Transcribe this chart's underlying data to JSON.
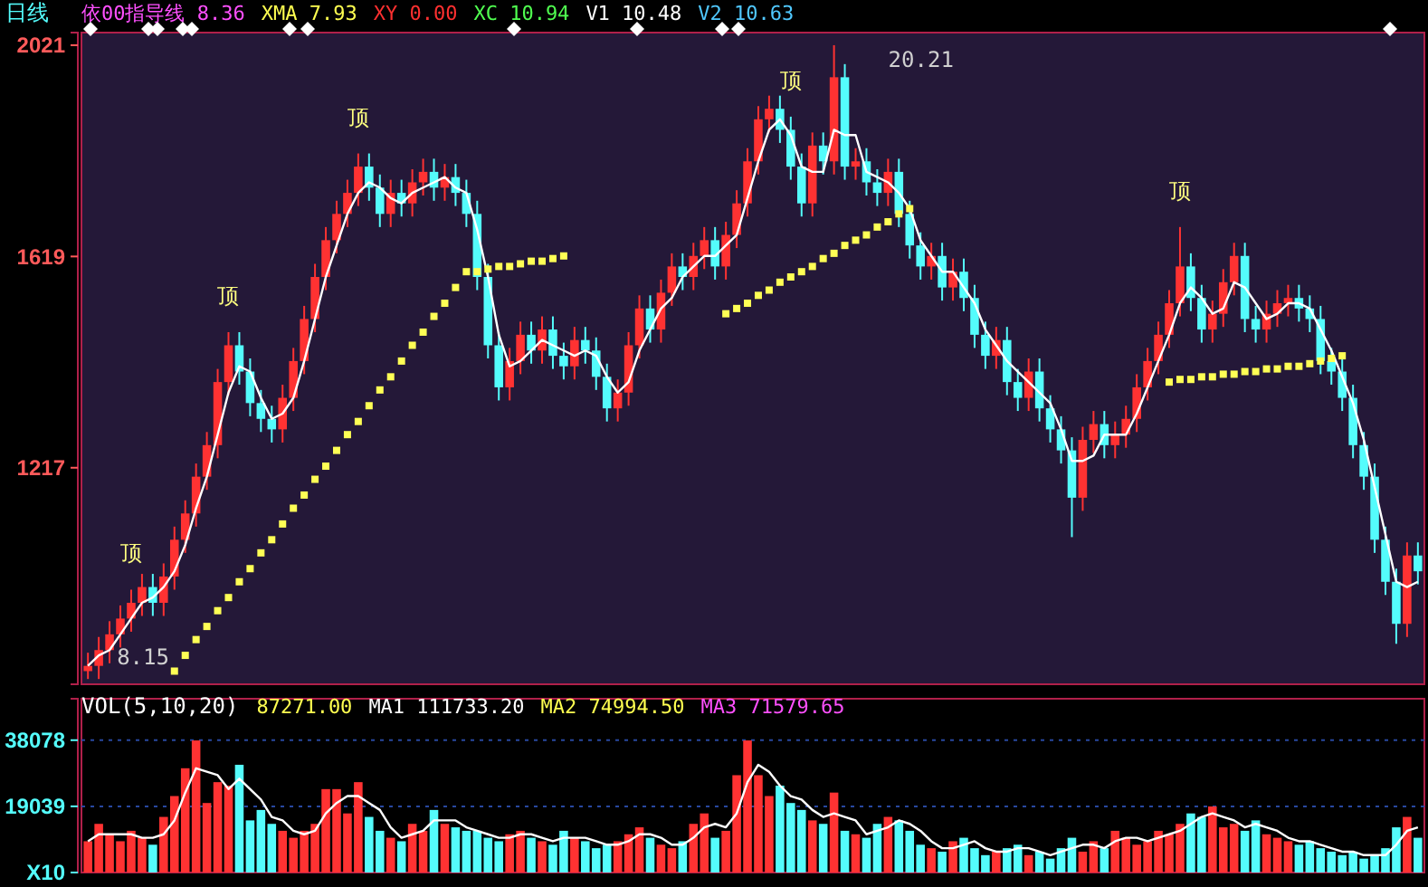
{
  "chart_data": [
    {
      "type": "candlestick",
      "title": "日线",
      "annotations": [
        "依00指导线 8.36",
        "XMA 7.93",
        "XY 0.00",
        "XC 10.94",
        "V1 10.48",
        "V2 10.63"
      ],
      "categories": [
        null,
        null,
        null,
        null,
        null,
        null,
        null,
        null,
        null,
        null,
        null,
        null,
        null,
        null,
        null,
        null,
        null,
        null,
        null,
        null,
        null,
        null,
        null,
        null,
        null,
        null,
        null,
        null,
        null,
        null,
        null,
        null,
        null,
        null,
        null,
        null,
        null,
        null,
        null,
        null,
        null,
        null,
        null,
        null,
        null,
        null,
        null,
        null,
        null,
        null,
        null,
        null,
        null,
        null,
        null,
        null,
        null,
        null,
        null,
        null,
        null,
        null,
        null,
        null,
        null,
        null,
        null,
        null,
        null,
        null,
        null,
        null,
        null,
        null,
        null,
        null,
        null,
        null,
        null,
        null,
        null,
        null,
        null,
        null,
        null,
        null,
        null,
        null,
        null,
        null,
        null,
        null,
        null,
        null,
        null,
        null,
        null,
        null,
        null,
        null,
        null,
        null,
        null,
        null,
        null,
        null,
        null,
        null,
        null,
        null,
        null,
        null,
        null,
        null,
        null,
        null,
        null,
        null,
        null,
        null,
        null,
        null,
        null,
        null
      ],
      "ohlc": [
        [
          830,
          865,
          815,
          840
        ],
        [
          840,
          895,
          815,
          870
        ],
        [
          870,
          925,
          845,
          900
        ],
        [
          900,
          955,
          875,
          930
        ],
        [
          930,
          985,
          905,
          960
        ],
        [
          960,
          1015,
          935,
          990
        ],
        [
          990,
          1015,
          935,
          960
        ],
        [
          960,
          1035,
          935,
          1010
        ],
        [
          1010,
          1105,
          985,
          1080
        ],
        [
          1080,
          1155,
          1055,
          1130
        ],
        [
          1130,
          1225,
          1105,
          1200
        ],
        [
          1200,
          1285,
          1175,
          1260
        ],
        [
          1260,
          1405,
          1235,
          1380
        ],
        [
          1380,
          1475,
          1355,
          1450
        ],
        [
          1450,
          1475,
          1375,
          1400
        ],
        [
          1400,
          1425,
          1315,
          1340
        ],
        [
          1340,
          1365,
          1285,
          1310
        ],
        [
          1310,
          1335,
          1265,
          1290
        ],
        [
          1290,
          1375,
          1265,
          1350
        ],
        [
          1350,
          1445,
          1325,
          1420
        ],
        [
          1420,
          1525,
          1395,
          1500
        ],
        [
          1500,
          1605,
          1475,
          1580
        ],
        [
          1580,
          1675,
          1555,
          1650
        ],
        [
          1650,
          1725,
          1625,
          1700
        ],
        [
          1700,
          1765,
          1675,
          1740
        ],
        [
          1740,
          1815,
          1715,
          1790
        ],
        [
          1790,
          1815,
          1725,
          1750
        ],
        [
          1750,
          1775,
          1675,
          1700
        ],
        [
          1700,
          1765,
          1675,
          1740
        ],
        [
          1740,
          1765,
          1695,
          1720
        ],
        [
          1720,
          1785,
          1695,
          1760
        ],
        [
          1760,
          1805,
          1735,
          1780
        ],
        [
          1780,
          1805,
          1725,
          1750
        ],
        [
          1750,
          1795,
          1725,
          1770
        ],
        [
          1770,
          1795,
          1715,
          1740
        ],
        [
          1740,
          1765,
          1675,
          1700
        ],
        [
          1700,
          1725,
          1555,
          1580
        ],
        [
          1580,
          1605,
          1425,
          1450
        ],
        [
          1450,
          1475,
          1345,
          1370
        ],
        [
          1370,
          1445,
          1345,
          1420
        ],
        [
          1420,
          1495,
          1395,
          1470
        ],
        [
          1470,
          1495,
          1415,
          1440
        ],
        [
          1440,
          1505,
          1415,
          1480
        ],
        [
          1480,
          1505,
          1405,
          1430
        ],
        [
          1430,
          1455,
          1385,
          1410
        ],
        [
          1410,
          1485,
          1385,
          1460
        ],
        [
          1460,
          1485,
          1415,
          1440
        ],
        [
          1440,
          1465,
          1365,
          1390
        ],
        [
          1390,
          1415,
          1305,
          1330
        ],
        [
          1330,
          1385,
          1305,
          1360
        ],
        [
          1360,
          1475,
          1335,
          1450
        ],
        [
          1450,
          1545,
          1425,
          1520
        ],
        [
          1520,
          1545,
          1455,
          1480
        ],
        [
          1480,
          1575,
          1455,
          1550
        ],
        [
          1550,
          1625,
          1525,
          1600
        ],
        [
          1600,
          1625,
          1555,
          1580
        ],
        [
          1580,
          1645,
          1555,
          1620
        ],
        [
          1620,
          1675,
          1595,
          1650
        ],
        [
          1650,
          1675,
          1575,
          1600
        ],
        [
          1600,
          1685,
          1575,
          1660
        ],
        [
          1660,
          1745,
          1635,
          1720
        ],
        [
          1720,
          1825,
          1695,
          1800
        ],
        [
          1800,
          1905,
          1775,
          1880
        ],
        [
          1880,
          1925,
          1855,
          1900
        ],
        [
          1900,
          1925,
          1835,
          1860
        ],
        [
          1860,
          1885,
          1765,
          1790
        ],
        [
          1790,
          1815,
          1695,
          1720
        ],
        [
          1720,
          1855,
          1695,
          1830
        ],
        [
          1830,
          1855,
          1775,
          1800
        ],
        [
          1800,
          2021,
          1775,
          1960
        ],
        [
          1960,
          1985,
          1765,
          1790
        ],
        [
          1790,
          1825,
          1765,
          1800
        ],
        [
          1800,
          1825,
          1735,
          1760
        ],
        [
          1760,
          1785,
          1715,
          1740
        ],
        [
          1740,
          1805,
          1715,
          1780
        ],
        [
          1780,
          1805,
          1675,
          1700
        ],
        [
          1700,
          1725,
          1615,
          1640
        ],
        [
          1640,
          1665,
          1575,
          1600
        ],
        [
          1600,
          1645,
          1575,
          1620
        ],
        [
          1620,
          1645,
          1535,
          1560
        ],
        [
          1560,
          1615,
          1535,
          1590
        ],
        [
          1590,
          1615,
          1515,
          1540
        ],
        [
          1540,
          1565,
          1445,
          1470
        ],
        [
          1470,
          1495,
          1405,
          1430
        ],
        [
          1430,
          1485,
          1405,
          1460
        ],
        [
          1460,
          1485,
          1355,
          1380
        ],
        [
          1380,
          1405,
          1325,
          1350
        ],
        [
          1350,
          1425,
          1325,
          1400
        ],
        [
          1400,
          1425,
          1305,
          1330
        ],
        [
          1330,
          1355,
          1265,
          1290
        ],
        [
          1290,
          1315,
          1225,
          1250
        ],
        [
          1250,
          1275,
          1085,
          1160
        ],
        [
          1160,
          1295,
          1135,
          1270
        ],
        [
          1270,
          1325,
          1245,
          1300
        ],
        [
          1300,
          1325,
          1235,
          1260
        ],
        [
          1260,
          1305,
          1235,
          1280
        ],
        [
          1280,
          1335,
          1255,
          1310
        ],
        [
          1310,
          1395,
          1285,
          1370
        ],
        [
          1370,
          1445,
          1345,
          1420
        ],
        [
          1420,
          1495,
          1395,
          1470
        ],
        [
          1470,
          1555,
          1445,
          1530
        ],
        [
          1530,
          1675,
          1505,
          1600
        ],
        [
          1600,
          1625,
          1515,
          1540
        ],
        [
          1540,
          1565,
          1455,
          1480
        ],
        [
          1480,
          1535,
          1455,
          1510
        ],
        [
          1510,
          1595,
          1485,
          1570
        ],
        [
          1570,
          1645,
          1545,
          1620
        ],
        [
          1620,
          1645,
          1475,
          1500
        ],
        [
          1500,
          1525,
          1455,
          1480
        ],
        [
          1480,
          1535,
          1455,
          1510
        ],
        [
          1510,
          1555,
          1485,
          1530
        ],
        [
          1530,
          1565,
          1505,
          1540
        ],
        [
          1540,
          1565,
          1495,
          1520
        ],
        [
          1520,
          1545,
          1475,
          1500
        ],
        [
          1500,
          1525,
          1395,
          1420
        ],
        [
          1420,
          1445,
          1375,
          1400
        ],
        [
          1400,
          1425,
          1325,
          1350
        ],
        [
          1350,
          1375,
          1235,
          1260
        ],
        [
          1260,
          1285,
          1175,
          1200
        ],
        [
          1200,
          1225,
          1055,
          1080
        ],
        [
          1080,
          1105,
          975,
          1000
        ],
        [
          1000,
          1025,
          882,
          920
        ],
        [
          920,
          1075,
          895,
          1050
        ],
        [
          1050,
          1075,
          995,
          1020
        ]
      ],
      "colors": [
        "#ff3232",
        "#ff3232",
        "#ff3232",
        "#ff3232",
        "#ff3232",
        "#ff3232",
        "#54fcfc",
        "#ff3232",
        "#ff3232",
        "#ff3232",
        "#ff3232",
        "#ff3232",
        "#ff3232",
        "#ff3232",
        "#54fcfc",
        "#54fcfc",
        "#54fcfc",
        "#54fcfc",
        "#ff3232",
        "#ff3232",
        "#ff3232",
        "#ff3232",
        "#ff3232",
        "#ff3232",
        "#ff3232",
        "#ff3232",
        "#54fcfc",
        "#54fcfc",
        "#ff3232",
        "#54fcfc",
        "#ff3232",
        "#ff3232",
        "#54fcfc",
        "#ff3232",
        "#54fcfc",
        "#54fcfc",
        "#54fcfc",
        "#54fcfc",
        "#54fcfc",
        "#ff3232",
        "#ff3232",
        "#54fcfc",
        "#ff3232",
        "#54fcfc",
        "#54fcfc",
        "#ff3232",
        "#54fcfc",
        "#54fcfc",
        "#54fcfc",
        "#ff3232",
        "#ff3232",
        "#ff3232",
        "#54fcfc",
        "#ff3232",
        "#ff3232",
        "#54fcfc",
        "#ff3232",
        "#ff3232",
        "#54fcfc",
        "#ff3232",
        "#ff3232",
        "#ff3232",
        "#ff3232",
        "#ff3232",
        "#54fcfc",
        "#54fcfc",
        "#54fcfc",
        "#ff3232",
        "#54fcfc",
        "#ff3232",
        "#54fcfc",
        "#ff3232",
        "#54fcfc",
        "#54fcfc",
        "#ff3232",
        "#54fcfc",
        "#54fcfc",
        "#54fcfc",
        "#ff3232",
        "#54fcfc",
        "#ff3232",
        "#54fcfc",
        "#54fcfc",
        "#54fcfc",
        "#ff3232",
        "#54fcfc",
        "#54fcfc",
        "#ff3232",
        "#54fcfc",
        "#54fcfc",
        "#54fcfc",
        "#54fcfc",
        "#ff3232",
        "#ff3232",
        "#54fcfc",
        "#ff3232",
        "#ff3232",
        "#ff3232",
        "#ff3232",
        "#ff3232",
        "#ff3232",
        "#ff3232",
        "#54fcfc",
        "#54fcfc",
        "#ff3232",
        "#ff3232",
        "#ff3232",
        "#54fcfc",
        "#54fcfc",
        "#ff3232",
        "#ff3232",
        "#ff3232",
        "#54fcfc",
        "#54fcfc",
        "#54fcfc",
        "#54fcfc",
        "#54fcfc",
        "#54fcfc",
        "#54fcfc",
        "#54fcfc",
        "#54fcfc",
        "#54fcfc",
        "#ff3232",
        "#54fcfc"
      ],
      "value_labels": [
        "8.15",
        null,
        null,
        null,
        "顶",
        null,
        null,
        null,
        null,
        null,
        null,
        null,
        null,
        "顶",
        null,
        null,
        null,
        null,
        null,
        null,
        null,
        null,
        null,
        null,
        null,
        "顶",
        null,
        null,
        null,
        null,
        null,
        null,
        null,
        null,
        null,
        null,
        null,
        null,
        null,
        null,
        null,
        null,
        null,
        null,
        null,
        null,
        null,
        null,
        null,
        null,
        null,
        null,
        null,
        null,
        null,
        null,
        null,
        null,
        null,
        null,
        null,
        null,
        null,
        null,
        null,
        "顶",
        null,
        null,
        null,
        "20.21",
        null,
        null,
        null,
        null,
        null,
        null,
        null,
        null,
        null,
        null,
        null,
        null,
        null,
        null,
        null,
        null,
        null,
        null,
        null,
        null,
        null,
        null,
        null,
        null,
        null,
        null,
        null,
        null,
        null,
        null,
        null,
        "顶",
        null,
        null,
        null,
        null,
        null,
        null,
        null,
        null,
        null,
        null,
        null,
        null,
        null,
        null,
        null,
        null,
        null,
        null,
        null,
        null,
        null,
        null
      ],
      "series": [
        {
          "type": "line",
          "color": "#ffffff",
          "values": [
            840,
            860,
            870,
            900,
            930,
            960,
            970,
            990,
            1020,
            1070,
            1140,
            1200,
            1280,
            1360,
            1410,
            1400,
            1350,
            1310,
            1320,
            1350,
            1420,
            1500,
            1580,
            1640,
            1700,
            1740,
            1760,
            1750,
            1730,
            1720,
            1740,
            1750,
            1760,
            1770,
            1750,
            1740,
            1670,
            1580,
            1470,
            1410,
            1420,
            1440,
            1460,
            1450,
            1440,
            1430,
            1440,
            1430,
            1390,
            1360,
            1380,
            1440,
            1480,
            1520,
            1540,
            1580,
            1600,
            1620,
            1620,
            1640,
            1660,
            1730,
            1800,
            1860,
            1880,
            1850,
            1790,
            1780,
            1780,
            1860,
            1850,
            1850,
            1780,
            1770,
            1760,
            1740,
            1710,
            1650,
            1620,
            1590,
            1590,
            1560,
            1530,
            1480,
            1450,
            1420,
            1400,
            1380,
            1360,
            1340,
            1290,
            1230,
            1230,
            1240,
            1280,
            1280,
            1280,
            1320,
            1370,
            1420,
            1470,
            1530,
            1560,
            1540,
            1510,
            1520,
            1570,
            1560,
            1530,
            1500,
            1510,
            1530,
            1530,
            1520,
            1480,
            1440,
            1390,
            1340,
            1270,
            1180,
            1090,
            1000,
            990,
            1000
          ]
        },
        {
          "type": "scatter",
          "marker": "square",
          "color": "#ffff55",
          "values": [
            null,
            null,
            null,
            null,
            null,
            null,
            null,
            null,
            830,
            860,
            890,
            915,
            945,
            970,
            1000,
            1025,
            1055,
            1080,
            1110,
            1140,
            1165,
            1195,
            1220,
            1250,
            1280,
            1305,
            1335,
            1365,
            1390,
            1420,
            1450,
            1475,
            1505,
            1530,
            1560,
            1590,
            1590,
            1595,
            1600,
            1600,
            1605,
            1610,
            1610,
            1615,
            1620,
            null,
            null,
            null,
            null,
            null,
            null,
            null,
            null,
            null,
            null,
            null,
            null,
            null,
            null,
            1510,
            1520,
            1530,
            1545,
            1555,
            1570,
            1580,
            1590,
            1600,
            1615,
            1625,
            1640,
            1650,
            1660,
            1675,
            1685,
            1700,
            1710,
            null,
            null,
            null,
            null,
            null,
            null,
            null,
            null,
            null,
            null,
            null,
            null,
            null,
            null,
            null,
            null,
            null,
            null,
            null,
            null,
            null,
            null,
            null,
            1380,
            1385,
            1385,
            1390,
            1390,
            1395,
            1395,
            1400,
            1400,
            1405,
            1405,
            1410,
            1410,
            1415,
            1420,
            1425,
            1430,
            null,
            null,
            null,
            null,
            null,
            null,
            null
          ]
        }
      ],
      "ylim": [
        805,
        2045
      ],
      "yticks": [
        1217,
        1619,
        2021
      ],
      "tick_labels": "y"
    },
    {
      "type": "bar",
      "title": "VOL(5,10,20)",
      "annotations": [
        "87271.00",
        "MA1 111733.20",
        "MA2 74994.50",
        "MA3 71579.65"
      ],
      "categories": [
        null,
        null,
        null,
        null,
        null,
        null,
        null,
        null,
        null,
        null,
        null,
        null,
        null,
        null,
        null,
        null,
        null,
        null,
        null,
        null,
        null,
        null,
        null,
        null,
        null,
        null,
        null,
        null,
        null,
        null,
        null,
        null,
        null,
        null,
        null,
        null,
        null,
        null,
        null,
        null,
        null,
        null,
        null,
        null,
        null,
        null,
        null,
        null,
        null,
        null,
        null,
        null,
        null,
        null,
        null,
        null,
        null,
        null,
        null,
        null,
        null,
        null,
        null,
        null,
        null,
        null,
        null,
        null,
        null,
        null,
        null,
        null,
        null,
        null,
        null,
        null,
        null,
        null,
        null,
        null,
        null,
        null,
        null,
        null,
        null,
        null,
        null,
        null,
        null,
        null,
        null,
        null,
        null,
        null,
        null,
        null,
        null,
        null,
        null,
        null,
        null,
        null,
        null,
        null,
        null,
        null,
        null,
        null,
        null,
        null,
        null,
        null,
        null,
        null,
        null,
        null,
        null,
        null,
        null,
        null,
        null,
        null,
        null,
        null
      ],
      "values": [
        9000,
        14000,
        11000,
        9000,
        12000,
        10000,
        8000,
        16000,
        22000,
        30000,
        38000,
        20000,
        26000,
        25000,
        31000,
        15000,
        18000,
        14000,
        12000,
        10000,
        12000,
        14000,
        24000,
        24000,
        17000,
        26000,
        16000,
        12000,
        10000,
        9000,
        14000,
        12000,
        18000,
        14000,
        13000,
        12000,
        12000,
        10000,
        9000,
        11000,
        12000,
        10000,
        9000,
        8000,
        12000,
        10000,
        9000,
        7000,
        8000,
        9000,
        11000,
        13000,
        10000,
        8000,
        7000,
        9000,
        14000,
        17000,
        10000,
        12000,
        28000,
        38000,
        28000,
        22000,
        25000,
        20000,
        18000,
        15000,
        14000,
        23000,
        12000,
        11000,
        10000,
        14000,
        16000,
        15000,
        12000,
        8000,
        7000,
        6000,
        9000,
        10000,
        7000,
        5000,
        6000,
        7000,
        8000,
        5000,
        6000,
        4000,
        7000,
        10000,
        6000,
        9000,
        7000,
        12000,
        10000,
        8000,
        9000,
        12000,
        11000,
        14000,
        17000,
        16000,
        19000,
        13000,
        14000,
        12000,
        15000,
        11000,
        10000,
        9000,
        8000,
        9000,
        7000,
        6000,
        5000,
        6000,
        4000,
        5000,
        7000,
        13000,
        16000,
        10000
      ],
      "colors": [
        "#ff3232",
        "#ff3232",
        "#ff3232",
        "#ff3232",
        "#ff3232",
        "#ff3232",
        "#54fcfc",
        "#ff3232",
        "#ff3232",
        "#ff3232",
        "#ff3232",
        "#ff3232",
        "#ff3232",
        "#ff3232",
        "#54fcfc",
        "#54fcfc",
        "#54fcfc",
        "#54fcfc",
        "#ff3232",
        "#ff3232",
        "#ff3232",
        "#ff3232",
        "#ff3232",
        "#ff3232",
        "#ff3232",
        "#ff3232",
        "#54fcfc",
        "#54fcfc",
        "#ff3232",
        "#54fcfc",
        "#ff3232",
        "#ff3232",
        "#54fcfc",
        "#ff3232",
        "#54fcfc",
        "#54fcfc",
        "#54fcfc",
        "#54fcfc",
        "#54fcfc",
        "#ff3232",
        "#ff3232",
        "#54fcfc",
        "#ff3232",
        "#54fcfc",
        "#54fcfc",
        "#ff3232",
        "#54fcfc",
        "#54fcfc",
        "#54fcfc",
        "#ff3232",
        "#ff3232",
        "#ff3232",
        "#54fcfc",
        "#ff3232",
        "#ff3232",
        "#54fcfc",
        "#ff3232",
        "#ff3232",
        "#54fcfc",
        "#ff3232",
        "#ff3232",
        "#ff3232",
        "#ff3232",
        "#ff3232",
        "#54fcfc",
        "#54fcfc",
        "#54fcfc",
        "#ff3232",
        "#54fcfc",
        "#ff3232",
        "#54fcfc",
        "#ff3232",
        "#54fcfc",
        "#54fcfc",
        "#ff3232",
        "#54fcfc",
        "#54fcfc",
        "#54fcfc",
        "#ff3232",
        "#54fcfc",
        "#ff3232",
        "#54fcfc",
        "#54fcfc",
        "#54fcfc",
        "#ff3232",
        "#54fcfc",
        "#54fcfc",
        "#ff3232",
        "#54fcfc",
        "#54fcfc",
        "#54fcfc",
        "#54fcfc",
        "#ff3232",
        "#ff3232",
        "#54fcfc",
        "#ff3232",
        "#ff3232",
        "#ff3232",
        "#ff3232",
        "#ff3232",
        "#ff3232",
        "#ff3232",
        "#54fcfc",
        "#54fcfc",
        "#ff3232",
        "#ff3232",
        "#ff3232",
        "#54fcfc",
        "#54fcfc",
        "#ff3232",
        "#ff3232",
        "#ff3232",
        "#54fcfc",
        "#54fcfc",
        "#54fcfc",
        "#54fcfc",
        "#54fcfc",
        "#54fcfc",
        "#54fcfc",
        "#54fcfc",
        "#54fcfc",
        "#54fcfc",
        "#ff3232",
        "#54fcfc"
      ],
      "series": [
        {
          "type": "line",
          "color": "#ffffff",
          "values": [
            9000,
            11000,
            11000,
            11000,
            11000,
            10000,
            10000,
            11000,
            15000,
            23000,
            30000,
            29000,
            28000,
            24000,
            27000,
            24000,
            21000,
            16000,
            15000,
            12000,
            11000,
            12000,
            17000,
            20000,
            22000,
            22000,
            20000,
            18000,
            13000,
            10000,
            11000,
            12000,
            15000,
            15000,
            15000,
            13000,
            12000,
            11000,
            10000,
            10000,
            11000,
            11000,
            10000,
            9000,
            10000,
            10000,
            10000,
            9000,
            8000,
            8000,
            9000,
            11000,
            11000,
            10000,
            8000,
            8000,
            10000,
            13000,
            14000,
            13000,
            17000,
            26000,
            31000,
            29000,
            25000,
            22000,
            21000,
            18000,
            16000,
            17000,
            16000,
            15000,
            11000,
            12000,
            13000,
            15000,
            14000,
            12000,
            9000,
            7000,
            7000,
            8000,
            9000,
            7000,
            6000,
            6000,
            7000,
            7000,
            6000,
            5000,
            6000,
            7000,
            8000,
            8000,
            7000,
            9000,
            10000,
            10000,
            9000,
            10000,
            11000,
            12000,
            14000,
            16000,
            17000,
            16000,
            15000,
            13000,
            14000,
            13000,
            12000,
            10000,
            9000,
            9000,
            8000,
            7000,
            6000,
            6000,
            5000,
            5000,
            5000,
            8000,
            12000,
            13000
          ]
        }
      ],
      "ylim": [
        0,
        50000
      ],
      "yticks": [
        {
          "value": 0,
          "label": "X10"
        },
        19039,
        38078
      ],
      "tick_labels": "y",
      "grid": "y"
    }
  ]
}
